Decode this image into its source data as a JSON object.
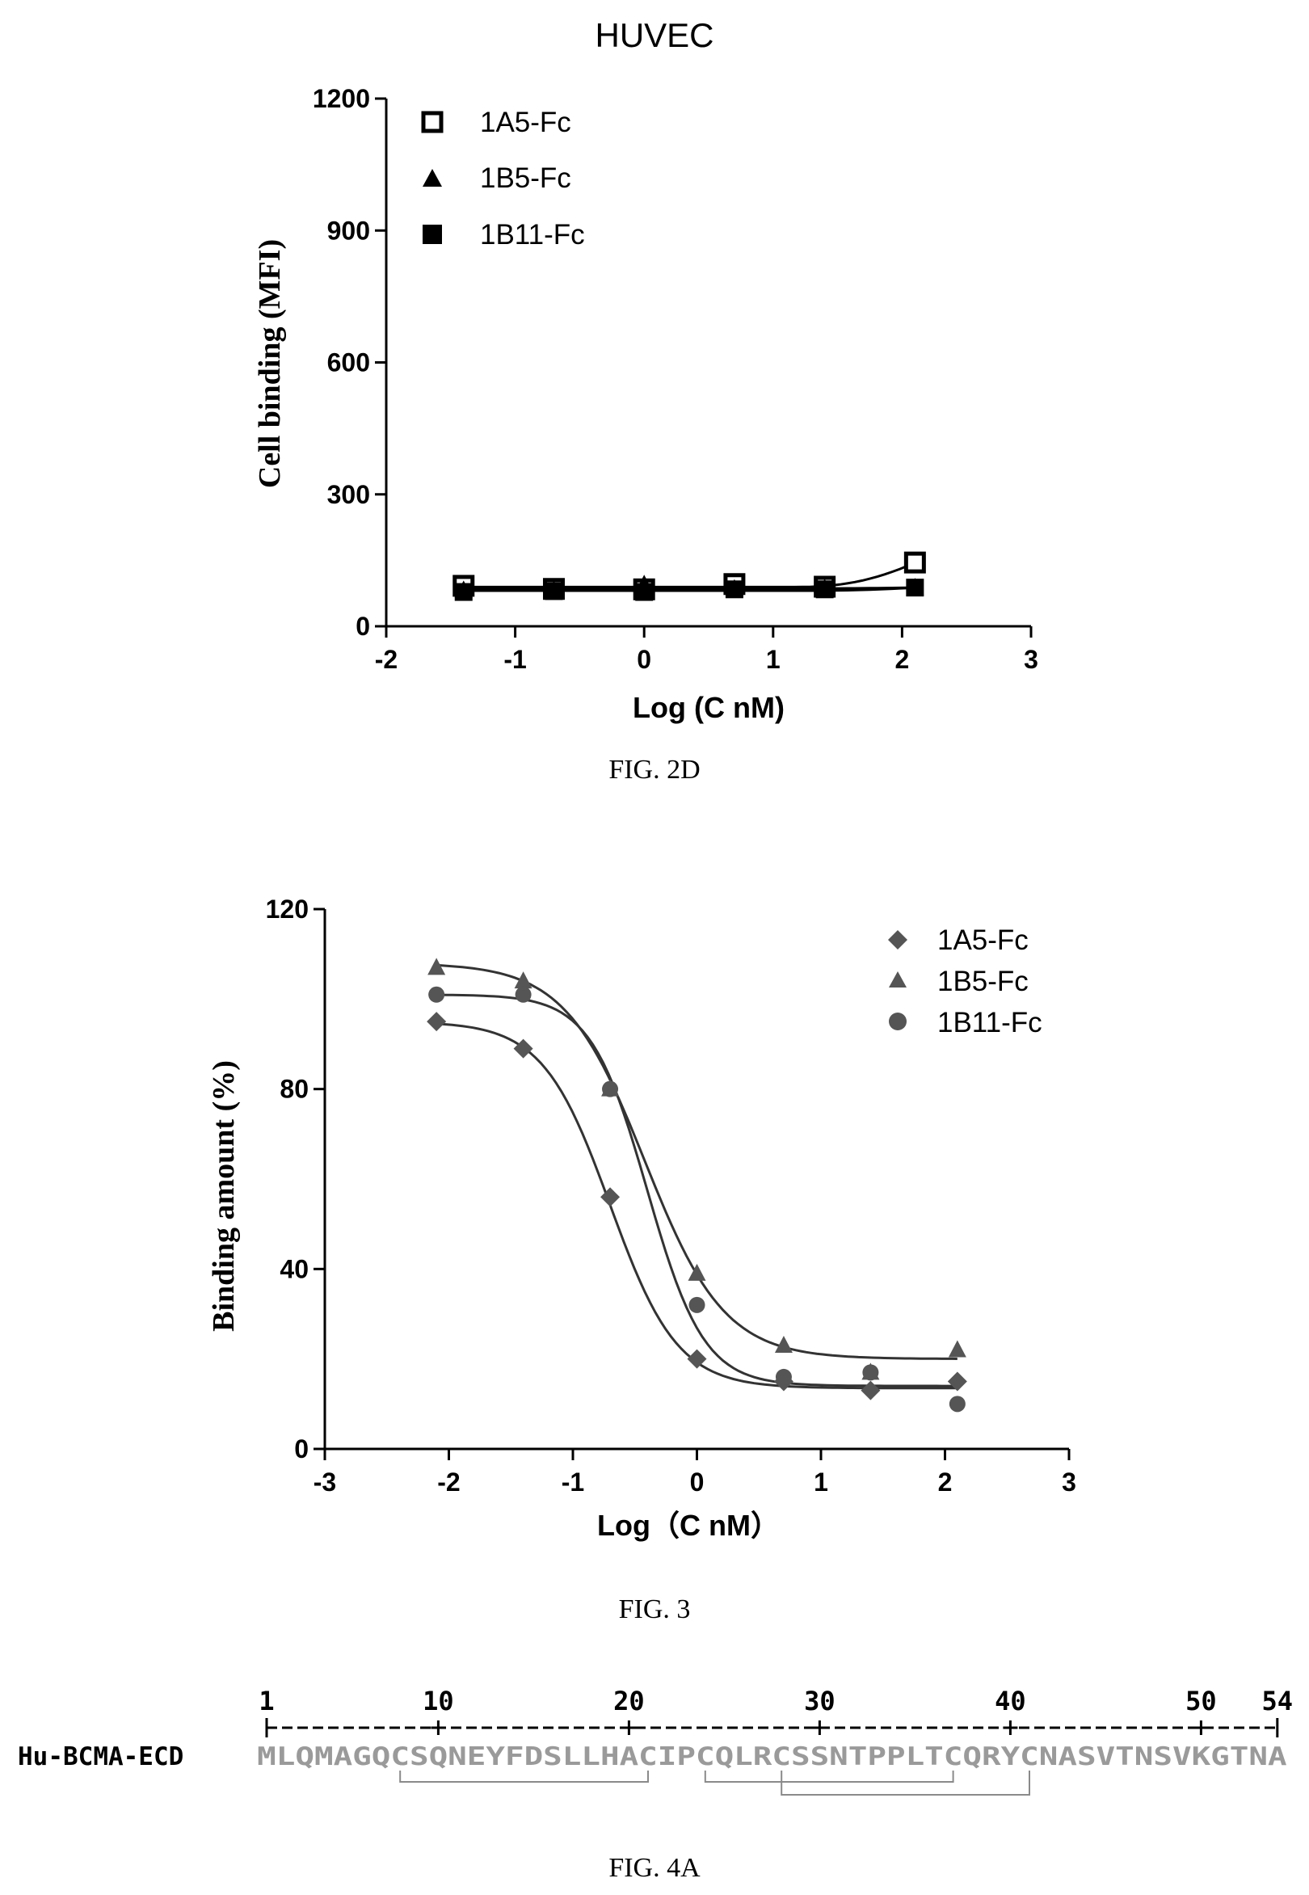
{
  "chart_data": [
    {
      "type": "scatter",
      "title": "HUVEC",
      "xlabel": "Log (C nM)",
      "ylabel": "Cell binding (MFI)",
      "xlim": [
        -2,
        3
      ],
      "ylim": [
        0,
        1200
      ],
      "xticks": [
        -2,
        -1,
        0,
        1,
        2,
        3
      ],
      "yticks": [
        0,
        300,
        600,
        900,
        1200
      ],
      "legend_position": "top-left",
      "caption": "FIG. 2D",
      "series": [
        {
          "name": "1A5-Fc",
          "marker": "open-square",
          "x": [
            -1.4,
            -0.7,
            0,
            0.7,
            1.4,
            2.1
          ],
          "y": [
            92,
            85,
            84,
            96,
            90,
            145
          ]
        },
        {
          "name": "1B5-Fc",
          "marker": "triangle",
          "x": [
            -1.4,
            -0.7,
            0,
            0.7,
            1.4,
            2.1
          ],
          "y": [
            82,
            82,
            95,
            85,
            86,
            88
          ]
        },
        {
          "name": "1B11-Fc",
          "marker": "filled-square",
          "x": [
            -1.4,
            -0.7,
            0,
            0.7,
            1.4,
            2.1
          ],
          "y": [
            78,
            80,
            78,
            84,
            84,
            88
          ]
        }
      ]
    },
    {
      "type": "scatter",
      "title": "",
      "xlabel": "Log（C nM）",
      "ylabel": "Binding amount (%)",
      "xlim": [
        -3,
        3
      ],
      "ylim": [
        0,
        120
      ],
      "xticks": [
        -3,
        -2,
        -1,
        0,
        1,
        2,
        3
      ],
      "yticks": [
        0,
        40,
        80,
        120
      ],
      "legend_position": "top-right",
      "caption": "FIG. 3",
      "series": [
        {
          "name": "1A5-Fc",
          "marker": "diamond",
          "x": [
            -2.1,
            -1.4,
            -0.7,
            0,
            0.7,
            1.4,
            2.1
          ],
          "y": [
            95,
            89,
            56,
            20,
            15,
            13,
            15
          ]
        },
        {
          "name": "1B5-Fc",
          "marker": "triangle",
          "x": [
            -2.1,
            -1.4,
            -0.7,
            0,
            0.7,
            1.4,
            2.1
          ],
          "y": [
            107,
            104,
            80,
            39,
            23,
            17,
            22
          ]
        },
        {
          "name": "1B11-Fc",
          "marker": "circle",
          "x": [
            -2.1,
            -1.4,
            -0.7,
            0,
            0.7,
            1.4,
            2.1
          ],
          "y": [
            101,
            101,
            80,
            32,
            16,
            17,
            10
          ]
        }
      ]
    }
  ],
  "sequence_figure": {
    "caption": "FIG. 4A",
    "label": "Hu-BCMA-ECD",
    "sequence": "MLQMAGQCSQNEYFDSLLHACIPCQLRCSSNTPPLTCQRYCNASVTNSVKGTNA",
    "ruler_numbers": [
      "1",
      "10",
      "20",
      "30",
      "40",
      "50",
      "54"
    ],
    "ruler_positions": [
      1,
      10,
      20,
      30,
      40,
      50,
      54
    ],
    "disulfide_pairs": [
      [
        8,
        21
      ],
      [
        24,
        37
      ],
      [
        28,
        41
      ]
    ]
  }
}
